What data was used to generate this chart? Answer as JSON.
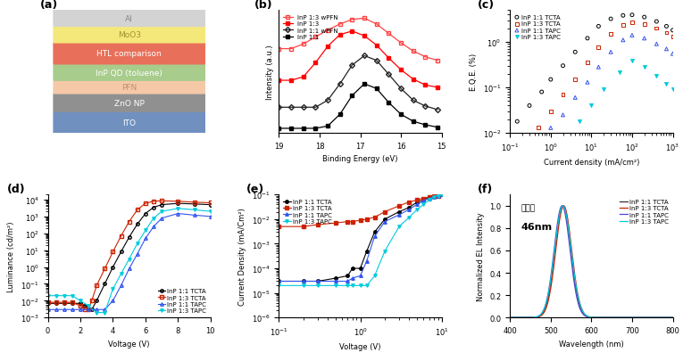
{
  "panel_a": {
    "layers": [
      {
        "label": "Al",
        "color": "#d3d3d3",
        "text_color": "#888888",
        "height": 1
      },
      {
        "label": "MoO3",
        "color": "#f5e87a",
        "text_color": "#a09030",
        "height": 1
      },
      {
        "label": "HTL comparison",
        "color": "#e8705a",
        "text_color": "white",
        "height": 1.3
      },
      {
        "label": "InP QD (toluene)",
        "color": "#a8cc8c",
        "text_color": "white",
        "height": 1
      },
      {
        "label": "PFN",
        "color": "#f5c9a8",
        "text_color": "#c09070",
        "height": 0.8
      },
      {
        "label": "ZnO NP",
        "color": "#909090",
        "text_color": "white",
        "height": 1.1
      },
      {
        "label": "ITO",
        "color": "#7090c0",
        "text_color": "white",
        "height": 1.3
      }
    ]
  },
  "panel_b": {
    "xlabel": "Binding Energy (eV)",
    "ylabel": "Intensity (a.u.)",
    "xlim": [
      19,
      15
    ],
    "series": [
      {
        "label": "InP 1:3 wPFN",
        "color": "#ff4444",
        "marker": "s",
        "filled": false,
        "x": [
          19.0,
          18.7,
          18.4,
          18.1,
          17.8,
          17.5,
          17.2,
          16.9,
          16.6,
          16.3,
          16.0,
          15.7,
          15.4,
          15.1
        ],
        "y": [
          0.72,
          0.72,
          0.76,
          0.82,
          0.88,
          0.93,
          0.97,
          0.98,
          0.93,
          0.85,
          0.77,
          0.7,
          0.65,
          0.62
        ]
      },
      {
        "label": "InP 1:3",
        "color": "#ff0000",
        "marker": "s",
        "filled": true,
        "x": [
          19.0,
          18.7,
          18.4,
          18.1,
          17.8,
          17.5,
          17.2,
          16.9,
          16.6,
          16.3,
          16.0,
          15.7,
          15.4,
          15.1
        ],
        "y": [
          0.45,
          0.45,
          0.48,
          0.6,
          0.74,
          0.84,
          0.87,
          0.83,
          0.75,
          0.64,
          0.54,
          0.46,
          0.41,
          0.39
        ]
      },
      {
        "label": "InP 1:1 wPFN",
        "color": "#222222",
        "marker": "D",
        "filled": false,
        "x": [
          19.0,
          18.7,
          18.4,
          18.1,
          17.8,
          17.5,
          17.2,
          16.9,
          16.6,
          16.3,
          16.0,
          15.7,
          15.4,
          15.1
        ],
        "y": [
          0.22,
          0.22,
          0.22,
          0.22,
          0.28,
          0.42,
          0.58,
          0.66,
          0.62,
          0.5,
          0.38,
          0.28,
          0.23,
          0.2
        ]
      },
      {
        "label": "InP 1:1",
        "color": "#000000",
        "marker": "s",
        "filled": true,
        "x": [
          19.0,
          18.7,
          18.4,
          18.1,
          17.8,
          17.5,
          17.2,
          16.9,
          16.6,
          16.3,
          16.0,
          15.7,
          15.4,
          15.1
        ],
        "y": [
          0.04,
          0.04,
          0.04,
          0.04,
          0.06,
          0.16,
          0.32,
          0.42,
          0.38,
          0.26,
          0.16,
          0.1,
          0.07,
          0.05
        ]
      }
    ]
  },
  "panel_c": {
    "xlabel": "Current density (mA/cm²)",
    "ylabel": "E.Q.E. (%)",
    "xlim": [
      0.1,
      1000
    ],
    "ylim": [
      0.01,
      5
    ],
    "series": [
      {
        "label": "InP 1:1 TCTA",
        "color": "#000000",
        "marker": "o",
        "filled": false,
        "x": [
          0.15,
          0.3,
          0.6,
          1.0,
          2.0,
          4.0,
          8.0,
          15.0,
          30.0,
          60.0,
          100.0,
          200.0,
          400.0,
          700.0,
          1000.0
        ],
        "y": [
          0.018,
          0.04,
          0.08,
          0.15,
          0.3,
          0.6,
          1.2,
          2.2,
          3.2,
          3.8,
          3.9,
          3.5,
          2.8,
          2.2,
          1.8
        ]
      },
      {
        "label": "InP 1:3 TCTA",
        "color": "#cc2200",
        "marker": "s",
        "filled": false,
        "x": [
          0.5,
          1.0,
          2.0,
          4.0,
          8.0,
          15.0,
          30.0,
          60.0,
          100.0,
          200.0,
          400.0,
          700.0,
          1000.0
        ],
        "y": [
          0.013,
          0.03,
          0.07,
          0.15,
          0.35,
          0.75,
          1.5,
          2.3,
          2.7,
          2.5,
          2.0,
          1.6,
          1.3
        ]
      },
      {
        "label": "InP 1:1 TAPC",
        "color": "#3355ee",
        "marker": "^",
        "filled": false,
        "x": [
          1.0,
          2.0,
          4.0,
          8.0,
          15.0,
          30.0,
          60.0,
          100.0,
          200.0,
          400.0,
          700.0,
          1000.0
        ],
        "y": [
          0.013,
          0.025,
          0.06,
          0.13,
          0.28,
          0.6,
          1.1,
          1.4,
          1.2,
          0.9,
          0.7,
          0.55
        ]
      },
      {
        "label": "InP 1:3 TAPC",
        "color": "#00ccdd",
        "marker": "v",
        "filled": true,
        "x": [
          5.0,
          10.0,
          20.0,
          50.0,
          100.0,
          200.0,
          400.0,
          700.0,
          1000.0
        ],
        "y": [
          0.018,
          0.04,
          0.09,
          0.22,
          0.38,
          0.28,
          0.18,
          0.12,
          0.09
        ]
      }
    ]
  },
  "panel_d": {
    "xlabel": "Voltage (V)",
    "ylabel": "Luminance (cd/m²)",
    "xlim": [
      0,
      10
    ],
    "ylim": [
      0.001,
      20000
    ],
    "legend_loc": "lower right",
    "series": [
      {
        "label": "InP 1:1 TCTA",
        "color": "#000000",
        "marker": "o",
        "filled": false,
        "x": [
          0,
          0.5,
          1.0,
          1.5,
          2.0,
          2.3,
          2.5,
          2.7,
          3.0,
          3.5,
          4.0,
          4.5,
          5.0,
          5.5,
          6.0,
          6.5,
          7.0,
          8.0,
          9.0,
          10.0
        ],
        "y": [
          0.007,
          0.007,
          0.007,
          0.007,
          0.007,
          0.005,
          0.003,
          0.003,
          0.01,
          0.1,
          1.0,
          8,
          60,
          350,
          1500,
          3500,
          5000,
          6000,
          5500,
          5000
        ]
      },
      {
        "label": "InP 1:3 TCTA",
        "color": "#cc2200",
        "marker": "s",
        "filled": false,
        "x": [
          0,
          0.5,
          1.0,
          1.5,
          2.0,
          2.3,
          2.5,
          2.7,
          3.0,
          3.5,
          4.0,
          4.5,
          5.0,
          5.5,
          6.0,
          6.5,
          7.0,
          8.0,
          9.0,
          10.0
        ],
        "y": [
          0.008,
          0.008,
          0.008,
          0.008,
          0.005,
          0.003,
          0.003,
          0.01,
          0.08,
          0.8,
          8,
          70,
          500,
          2500,
          6000,
          8000,
          8500,
          8000,
          7000,
          6500
        ]
      },
      {
        "label": "InP 1:1 TAPC",
        "color": "#3355ee",
        "marker": "^",
        "filled": false,
        "x": [
          0,
          0.5,
          1.0,
          1.5,
          2.0,
          2.5,
          3.0,
          3.5,
          4.0,
          4.5,
          5.0,
          5.5,
          6.0,
          6.5,
          7.0,
          8.0,
          9.0,
          10.0
        ],
        "y": [
          0.003,
          0.003,
          0.003,
          0.003,
          0.003,
          0.003,
          0.003,
          0.003,
          0.01,
          0.08,
          0.8,
          6,
          50,
          250,
          800,
          1500,
          1200,
          1000
        ]
      },
      {
        "label": "InP 1:3 TAPC",
        "color": "#00ccdd",
        "marker": "v",
        "filled": true,
        "x": [
          0,
          0.5,
          1.0,
          1.5,
          2.0,
          2.5,
          3.0,
          3.5,
          4.0,
          4.5,
          5.0,
          5.5,
          6.0,
          6.5,
          7.0,
          8.0,
          9.0,
          10.0
        ],
        "y": [
          0.02,
          0.02,
          0.02,
          0.02,
          0.01,
          0.005,
          0.002,
          0.002,
          0.05,
          0.4,
          3,
          25,
          150,
          800,
          2000,
          3000,
          2500,
          2000
        ]
      }
    ]
  },
  "panel_e": {
    "xlabel": "Voltage (V)",
    "ylabel": "Current Density (mA/Cm²)",
    "xlim_log": [
      0.1,
      10
    ],
    "ylim": [
      1e-06,
      0.1
    ],
    "series": [
      {
        "label": "InP 1:1 TCTA",
        "color": "#000000",
        "marker": "o",
        "filled": true,
        "x": [
          0.1,
          0.2,
          0.3,
          0.5,
          0.7,
          0.8,
          1.0,
          1.2,
          1.5,
          2.0,
          3.0,
          4.0,
          5.0,
          6.0,
          7.0,
          8.0,
          9.0,
          10.0
        ],
        "y": [
          3e-05,
          3e-05,
          3e-05,
          4e-05,
          5e-05,
          0.0001,
          0.0001,
          0.0005,
          0.003,
          0.01,
          0.02,
          0.03,
          0.05,
          0.06,
          0.08,
          0.09,
          0.09,
          0.1
        ]
      },
      {
        "label": "InP 1:3 TCTA",
        "color": "#cc2200",
        "marker": "s",
        "filled": true,
        "x": [
          0.1,
          0.2,
          0.3,
          0.5,
          0.7,
          0.8,
          1.0,
          1.2,
          1.5,
          2.0,
          3.0,
          4.0,
          5.0,
          6.0,
          7.0,
          8.0,
          9.0,
          10.0
        ],
        "y": [
          0.005,
          0.005,
          0.006,
          0.007,
          0.008,
          0.008,
          0.009,
          0.01,
          0.012,
          0.02,
          0.035,
          0.05,
          0.06,
          0.07,
          0.08,
          0.09,
          0.09,
          0.1
        ]
      },
      {
        "label": "InP 1:1 TAPC",
        "color": "#3355ee",
        "marker": "^",
        "filled": true,
        "x": [
          0.1,
          0.2,
          0.3,
          0.5,
          0.7,
          0.8,
          1.0,
          1.2,
          1.5,
          2.0,
          3.0,
          4.0,
          5.0,
          6.0,
          7.0,
          8.0,
          9.0,
          10.0
        ],
        "y": [
          3e-05,
          3e-05,
          3e-05,
          3e-05,
          3e-05,
          4e-05,
          5e-05,
          0.0002,
          0.002,
          0.008,
          0.015,
          0.025,
          0.04,
          0.055,
          0.07,
          0.08,
          0.09,
          0.1
        ]
      },
      {
        "label": "InP 1:3 TAPC",
        "color": "#00ccdd",
        "marker": "v",
        "filled": true,
        "x": [
          0.1,
          0.2,
          0.3,
          0.5,
          0.7,
          0.8,
          1.0,
          1.2,
          1.5,
          2.0,
          3.0,
          4.0,
          5.0,
          6.0,
          7.0,
          8.0,
          9.0,
          10.0
        ],
        "y": [
          2e-05,
          2e-05,
          2e-05,
          2e-05,
          2e-05,
          2e-05,
          2e-05,
          2e-05,
          5e-05,
          0.0005,
          0.005,
          0.012,
          0.025,
          0.04,
          0.06,
          0.08,
          0.09,
          0.1
        ]
      }
    ]
  },
  "panel_f": {
    "xlabel": "Wavelength (nm)",
    "ylabel": "Normalized EL Intensity",
    "xlim": [
      400,
      800
    ],
    "ylim": [
      0,
      1.1
    ],
    "annotation_text": "반치폭",
    "annotation_value": "46nm",
    "series": [
      {
        "label": "InP 1:1 TCTA",
        "color": "#333333",
        "peak": 530,
        "fwhm": 46
      },
      {
        "label": "InP 1:3 TCTA",
        "color": "#cc2200",
        "peak": 532,
        "fwhm": 46
      },
      {
        "label": "InP 1:1 TAPC",
        "color": "#5544cc",
        "peak": 528,
        "fwhm": 46
      },
      {
        "label": "InP 1:3 TAPC",
        "color": "#00ccdd",
        "peak": 530,
        "fwhm": 48
      }
    ]
  }
}
